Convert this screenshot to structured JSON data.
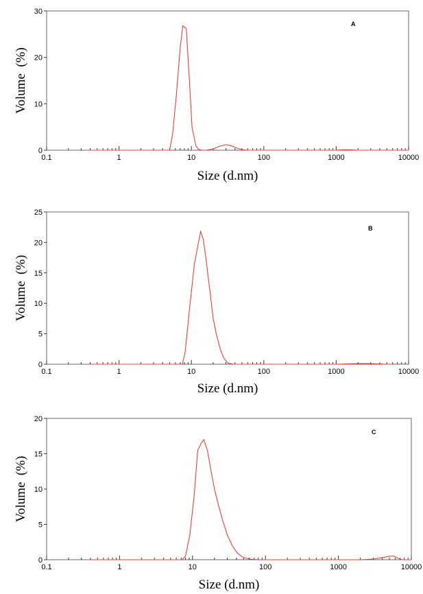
{
  "chart_data": [
    {
      "type": "line",
      "panel_label": "A",
      "xlabel": "Size (d.nm)",
      "ylabel": "Volume  (%)",
      "xscale": "log",
      "xlim": [
        0.1,
        10000
      ],
      "ylim": [
        0,
        30
      ],
      "xticks": [
        "0.1",
        "1",
        "10",
        "100",
        "1000",
        "10000"
      ],
      "yticks": [
        "0",
        "10",
        "20",
        "30"
      ],
      "ytick_values": [
        0,
        10,
        20,
        30
      ],
      "grid": false,
      "line_color": "#e8403a",
      "series": [
        {
          "x": [
            0.4,
            1,
            3,
            5,
            5.5,
            6.2,
            7,
            7.6,
            8.5,
            9.3,
            10.2,
            11.5,
            12.5,
            14,
            16,
            20,
            25,
            30,
            35,
            40,
            50,
            60,
            80,
            100,
            200,
            500,
            1000,
            1200,
            1500,
            2000,
            5000,
            10000
          ],
          "y": [
            0,
            0,
            0,
            0,
            3.5,
            12,
            22,
            26.8,
            26.2,
            16,
            5,
            1,
            0.2,
            0,
            0,
            0.3,
            0.9,
            1.2,
            1.0,
            0.6,
            0.1,
            0,
            0,
            0,
            0,
            0,
            0,
            0.1,
            0.1,
            0,
            0,
            0
          ]
        }
      ]
    },
    {
      "type": "line",
      "panel_label": "B",
      "xlabel": "Size (d.nm)",
      "ylabel": "Volume  (%)",
      "xscale": "log",
      "xlim": [
        0.1,
        10000
      ],
      "ylim": [
        0,
        25
      ],
      "xticks": [
        "0.1",
        "1",
        "10",
        "100",
        "1000",
        "10000"
      ],
      "yticks": [
        "0",
        "5",
        "10",
        "15",
        "20",
        "25"
      ],
      "ytick_values": [
        0,
        5,
        10,
        15,
        20,
        25
      ],
      "grid": false,
      "line_color": "#e8403a",
      "series": [
        {
          "x": [
            0.4,
            1,
            5,
            7.5,
            8.2,
            9.5,
            11,
            12.3,
            13.4,
            14.6,
            16,
            18,
            20,
            22,
            25,
            28,
            32,
            38,
            50,
            100,
            500,
            1000,
            2000,
            2500,
            3000,
            5000,
            6000
          ],
          "y": [
            0,
            0,
            0,
            0,
            2,
            9.5,
            16.5,
            19.5,
            21.8,
            20.5,
            17,
            12,
            7.5,
            5,
            2.5,
            1,
            0.2,
            0,
            0,
            0,
            0,
            0,
            0.1,
            0.1,
            0.1,
            0,
            0
          ]
        }
      ]
    },
    {
      "type": "line",
      "panel_label": "C",
      "xlabel": "Size (d.nm)",
      "ylabel": "Volume  (%)",
      "xscale": "log",
      "xlim": [
        0.1,
        10000
      ],
      "ylim": [
        0,
        20
      ],
      "xticks": [
        "0.1",
        "1",
        "10",
        "100",
        "1000",
        "10000"
      ],
      "yticks": [
        "0",
        "5",
        "10",
        "15",
        "20"
      ],
      "ytick_values": [
        0,
        5,
        10,
        15,
        20
      ],
      "grid": false,
      "line_color": "#e8403a",
      "series": [
        {
          "x": [
            0.4,
            1,
            5,
            7.2,
            8,
            9.2,
            10.5,
            11.8,
            13.2,
            14.3,
            16,
            18,
            20,
            23,
            26,
            30,
            35,
            40,
            45,
            50,
            60,
            80,
            100,
            500,
            1000,
            2000,
            3000,
            4000,
            5000,
            5800,
            6600,
            7500,
            10000
          ],
          "y": [
            0,
            0,
            0,
            0,
            0.5,
            3.5,
            9,
            15.5,
            16.5,
            17,
            15.5,
            12.5,
            10,
            7.5,
            5.5,
            3.5,
            2,
            1.1,
            0.6,
            0.3,
            0.1,
            0,
            0,
            0,
            0,
            0,
            0.1,
            0.3,
            0.5,
            0.5,
            0.2,
            0,
            0
          ]
        }
      ]
    }
  ]
}
